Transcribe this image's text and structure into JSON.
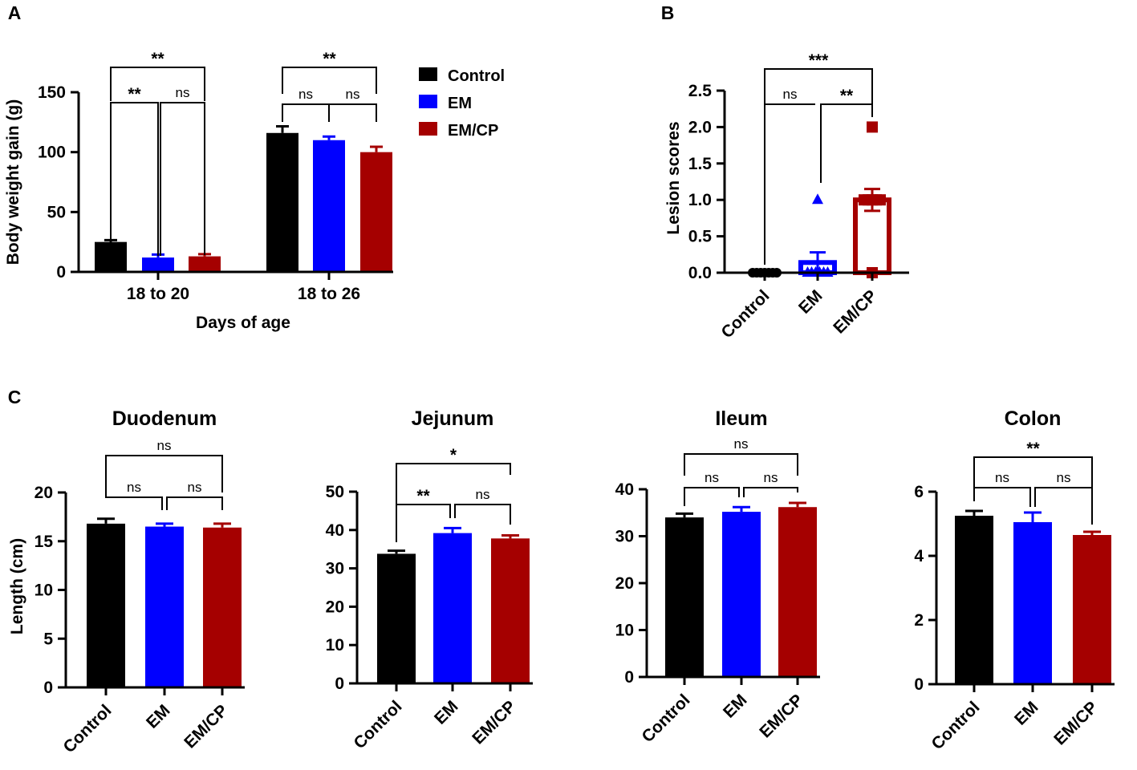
{
  "colors": {
    "Control": "#000000",
    "EM": "#0000ff",
    "EM/CP": "#a50000"
  },
  "panel_labels": [
    "A",
    "B",
    "C"
  ],
  "chart_data": [
    {
      "id": "A",
      "type": "bar",
      "title": "",
      "xlabel": "Days of age",
      "ylabel": "Body weight gain (g)",
      "ylim": [
        0,
        150
      ],
      "yticks": [
        "0",
        "50",
        "100",
        "150"
      ],
      "categories": [
        "18 to 20",
        "18 to 26"
      ],
      "legend": [
        "Control",
        "EM",
        "EM/CP"
      ],
      "series": [
        {
          "name": "Control",
          "values": [
            25,
            116
          ],
          "errors": [
            1.5,
            5.5
          ]
        },
        {
          "name": "EM",
          "values": [
            12,
            110
          ],
          "errors": [
            2.5,
            3
          ]
        },
        {
          "name": "EM/CP",
          "values": [
            13,
            100
          ],
          "errors": [
            1.8,
            4.5
          ]
        }
      ],
      "annotations": [
        {
          "group": 0,
          "pair": [
            0,
            2
          ],
          "label": "**"
        },
        {
          "group": 0,
          "pair": [
            0,
            1
          ],
          "label": "**"
        },
        {
          "group": 0,
          "pair": [
            1,
            2
          ],
          "label": "ns"
        },
        {
          "group": 1,
          "pair": [
            0,
            2
          ],
          "label": "**"
        },
        {
          "group": 1,
          "pair": [
            0,
            1
          ],
          "label": "ns"
        },
        {
          "group": 1,
          "pair": [
            1,
            2
          ],
          "label": "ns"
        }
      ]
    },
    {
      "id": "B",
      "type": "bar",
      "title": "",
      "xlabel": "",
      "ylabel": "Lesion scores",
      "ylim": [
        0,
        2.5
      ],
      "yticks": [
        "0.0",
        "0.5",
        "1.0",
        "1.5",
        "2.0",
        "2.5"
      ],
      "categories": [
        "Control",
        "EM",
        "EM/CP"
      ],
      "values": [
        0,
        0.14,
        1.0
      ],
      "errors": [
        0,
        0.14,
        0.15
      ],
      "points": [
        [
          0,
          0,
          0,
          0,
          0,
          0,
          0
        ],
        [
          1,
          0,
          0,
          0,
          0,
          0,
          0
        ],
        [
          2,
          1,
          1,
          1,
          1,
          1,
          0
        ]
      ],
      "annotations": [
        {
          "pair": [
            0,
            2
          ],
          "label": "***"
        },
        {
          "pair": [
            0,
            1
          ],
          "label": "ns"
        },
        {
          "pair": [
            1,
            2
          ],
          "label": "**"
        }
      ]
    },
    {
      "id": "C-duodenum",
      "type": "bar",
      "title": "Duodenum",
      "ylabel": "Length (cm)",
      "ylim": [
        0,
        20
      ],
      "yticks": [
        "0",
        "5",
        "10",
        "15",
        "20"
      ],
      "categories": [
        "Control",
        "EM",
        "EM/CP"
      ],
      "values": [
        16.8,
        16.5,
        16.4
      ],
      "errors": [
        0.5,
        0.3,
        0.4
      ],
      "annotations": [
        {
          "pair": [
            0,
            2
          ],
          "label": "ns"
        },
        {
          "pair": [
            0,
            1
          ],
          "label": "ns"
        },
        {
          "pair": [
            1,
            2
          ],
          "label": "ns"
        }
      ]
    },
    {
      "id": "C-jejunum",
      "type": "bar",
      "title": "Jejunum",
      "ylabel": "",
      "ylim": [
        0,
        50
      ],
      "yticks": [
        "0",
        "10",
        "20",
        "30",
        "40",
        "50"
      ],
      "categories": [
        "Control",
        "EM",
        "EM/CP"
      ],
      "values": [
        33.8,
        39.2,
        37.8
      ],
      "errors": [
        0.8,
        1.3,
        0.8
      ],
      "annotations": [
        {
          "pair": [
            0,
            2
          ],
          "label": "*"
        },
        {
          "pair": [
            0,
            1
          ],
          "label": "**"
        },
        {
          "pair": [
            1,
            2
          ],
          "label": "ns"
        }
      ]
    },
    {
      "id": "C-ileum",
      "type": "bar",
      "title": "Ileum",
      "ylabel": "",
      "ylim": [
        0,
        40
      ],
      "yticks": [
        "0",
        "10",
        "20",
        "30",
        "40"
      ],
      "categories": [
        "Control",
        "EM",
        "EM/CP"
      ],
      "values": [
        34.0,
        35.2,
        36.2
      ],
      "errors": [
        0.8,
        1.0,
        0.9
      ],
      "annotations": [
        {
          "pair": [
            0,
            2
          ],
          "label": "ns"
        },
        {
          "pair": [
            0,
            1
          ],
          "label": "ns"
        },
        {
          "pair": [
            1,
            2
          ],
          "label": "ns"
        }
      ]
    },
    {
      "id": "C-colon",
      "type": "bar",
      "title": "Colon",
      "ylabel": "",
      "ylim": [
        0,
        6
      ],
      "yticks": [
        "0",
        "2",
        "4",
        "6"
      ],
      "categories": [
        "Control",
        "EM",
        "EM/CP"
      ],
      "values": [
        5.25,
        5.05,
        4.65
      ],
      "errors": [
        0.15,
        0.3,
        0.1
      ],
      "annotations": [
        {
          "pair": [
            0,
            2
          ],
          "label": "**"
        },
        {
          "pair": [
            0,
            1
          ],
          "label": "ns"
        },
        {
          "pair": [
            1,
            2
          ],
          "label": "ns"
        }
      ]
    }
  ]
}
